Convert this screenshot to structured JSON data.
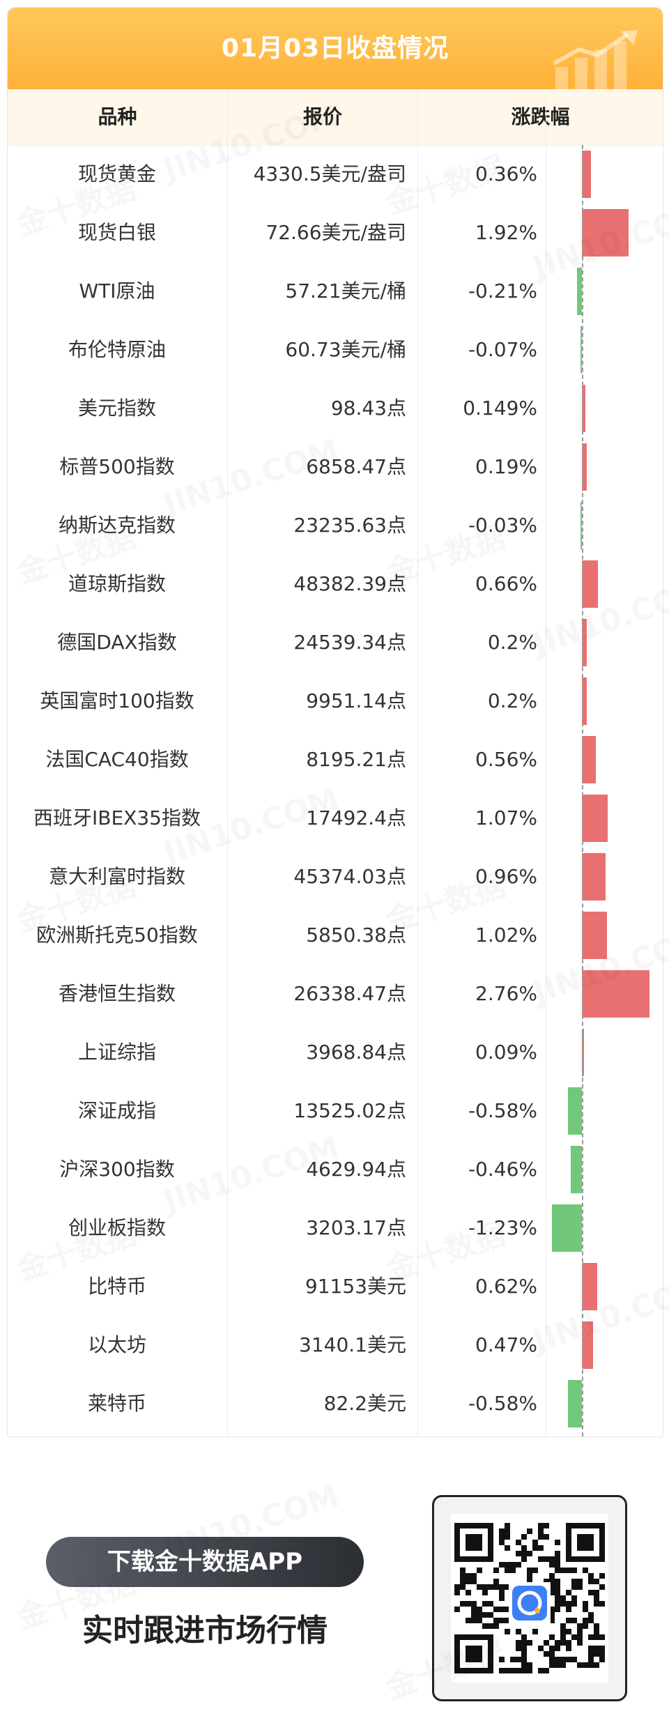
{
  "header": {
    "title": "01月03日收盘情况",
    "col_name": "品种",
    "col_price": "报价",
    "col_change": "涨跌幅"
  },
  "colors": {
    "up": "#e87070",
    "down": "#72c77b",
    "banner": "#ffb13a",
    "header_row": "#fff8ea"
  },
  "chart_data": {
    "type": "bar",
    "categories": [
      "现货黄金",
      "现货白银",
      "WTI原油",
      "布伦特原油",
      "美元指数",
      "标普500指数",
      "纳斯达克指数",
      "道琼斯指数",
      "德国DAX指数",
      "英国富时100指数",
      "法国CAC40指数",
      "西班牙IBEX35指数",
      "意大利富时指数",
      "欧洲斯托克50指数",
      "香港恒生指数",
      "上证综指",
      "深证成指",
      "沪深300指数",
      "创业板指数",
      "比特币",
      "以太坊",
      "莱特币"
    ],
    "prices": [
      "4330.5美元/盎司",
      "72.66美元/盎司",
      "57.21美元/桶",
      "60.73美元/桶",
      "98.43点",
      "6858.47点",
      "23235.63点",
      "48382.39点",
      "24539.34点",
      "9951.14点",
      "8195.21点",
      "17492.4点",
      "45374.03点",
      "5850.38点",
      "26338.47点",
      "3968.84点",
      "13525.02点",
      "4629.94点",
      "3203.17点",
      "91153美元",
      "3140.1美元",
      "82.2美元"
    ],
    "change_labels": [
      "0.36%",
      "1.92%",
      "-0.21%",
      "-0.07%",
      "0.149%",
      "0.19%",
      "-0.03%",
      "0.66%",
      "0.2%",
      "0.2%",
      "0.56%",
      "1.07%",
      "0.96%",
      "1.02%",
      "2.76%",
      "0.09%",
      "-0.58%",
      "-0.46%",
      "-1.23%",
      "0.62%",
      "0.47%",
      "-0.58%"
    ],
    "values": [
      0.36,
      1.92,
      -0.21,
      -0.07,
      0.149,
      0.19,
      -0.03,
      0.66,
      0.2,
      0.2,
      0.56,
      1.07,
      0.96,
      1.02,
      2.76,
      0.09,
      -0.58,
      -0.46,
      -1.23,
      0.62,
      0.47,
      -0.58
    ],
    "xlim": [
      -1.23,
      2.76
    ]
  },
  "cta": {
    "download": "下载金十数据APP",
    "slogan": "实时跟进市场行情"
  },
  "watermark": {
    "brand_cn": "金十数据",
    "brand_en": "JIN10.COM"
  }
}
